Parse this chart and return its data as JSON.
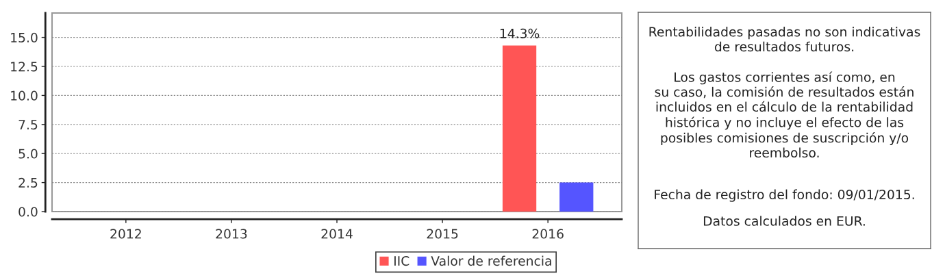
{
  "chart_data": [
    {
      "type": "bar",
      "categories": [
        "2012",
        "2013",
        "2014",
        "2015",
        "2016"
      ],
      "series": [
        {
          "name": "IIC",
          "color": "#ff5555",
          "values": [
            null,
            null,
            null,
            null,
            14.3
          ],
          "value_labels": [
            null,
            null,
            null,
            null,
            "14.3%"
          ]
        },
        {
          "name": "Valor de referencia",
          "color": "#5555ff",
          "values": [
            null,
            null,
            null,
            null,
            2.5
          ]
        }
      ],
      "ylim": [
        0,
        17.1
      ],
      "yticks": [
        {
          "value": 0,
          "label": "0.0"
        },
        2.5,
        {
          "value": 5,
          "label": "5.0"
        },
        7.5,
        {
          "value": 10,
          "label": "10.0"
        },
        12.5,
        {
          "value": 15,
          "label": "15.0"
        }
      ],
      "grid": "y",
      "legend": "bottom"
    },
    {
      "type": "other",
      "annotations": [
        "Rentabilidades pasadas no son indicativas\nde resultados futuros.",
        "Los gastos corrientes así como, en\nsu caso, la comisión de resultados están\nincluidos en el cálculo de la rentabilidad\nhistórica y no incluye el efecto de las\nposibles comisiones de suscripción y/o\nreembolso.",
        "Fecha de registro del fondo: 09/01/2015.",
        "Datos calculados en EUR."
      ]
    }
  ]
}
